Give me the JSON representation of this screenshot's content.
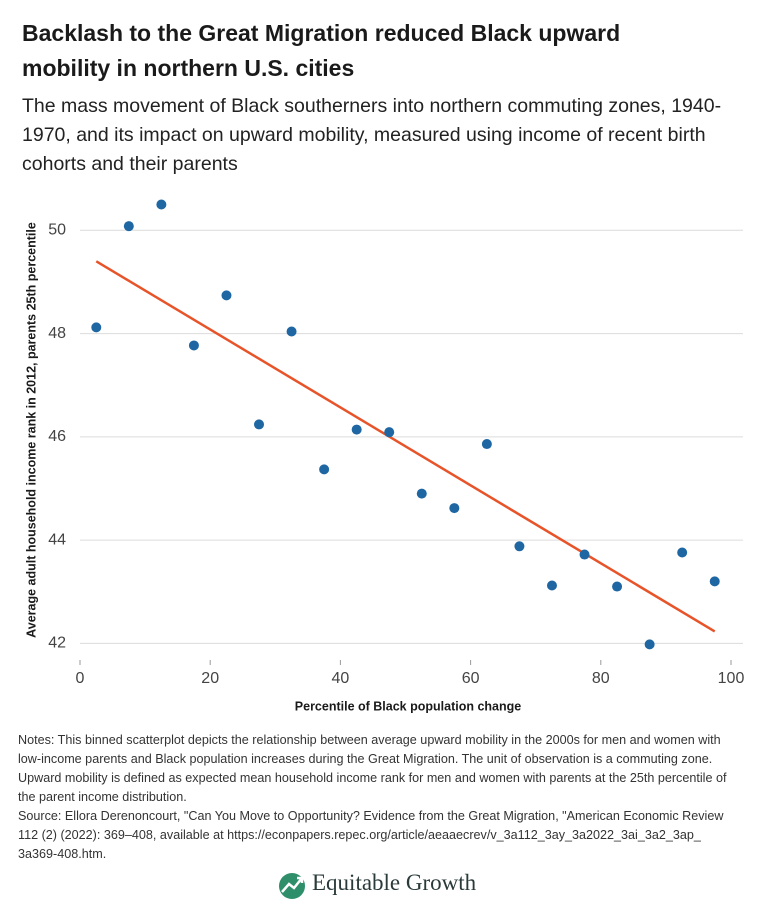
{
  "chart_data": {
    "type": "scatter",
    "title": "Backlash to the Great Migration reduced Black upward mobility in northern U.S. cities",
    "subtitle": "The mass movement of Black southerners into northern commuting zones, 1940-1970, and its impact on upward mobility, measured using income of recent birth cohorts and their parents",
    "x_label": "Percentile of Black population change",
    "y_label": "Average adult household income rank in 2012, parents 25th percentile",
    "notes": "Notes: This binned scatterplot depicts the relationship between average upward mobility in the 2000s for men and women with low-income parents and Black population increases during the Great Migration. The unit of observation is a commuting zone. Upward mobility is defined as expected mean household income rank for men and women  with parents at the 25th percentile of the parent income distribution.",
    "source": "Source: Ellora Derenoncourt, \"Can You Move to Opportunity? Evidence from the Great Migration, \"American Economic Review 112 (2) (2022): 369–408, available at https://econpapers.repec.org/article/aeaaecrev/v_3a112_3ay_3a2022_3ai_3a2_3ap_ 3a369-408.htm.",
    "brand": "Equitable Growth",
    "x": [
      2.5,
      7.5,
      12.5,
      17.5,
      22.5,
      27.5,
      32.5,
      37.5,
      42.5,
      47.5,
      52.5,
      57.5,
      62.5,
      67.5,
      72.5,
      77.5,
      82.5,
      87.5,
      92.5,
      97.5
    ],
    "values": [
      48.12,
      50.08,
      50.5,
      47.77,
      48.74,
      46.24,
      48.04,
      45.37,
      46.14,
      46.09,
      44.9,
      44.62,
      45.86,
      43.88,
      43.12,
      43.72,
      43.1,
      41.98,
      43.76,
      43.2
    ],
    "color": "#1f67a3",
    "fit": {
      "x": [
        2.5,
        97.5
      ],
      "values": [
        49.4,
        42.23
      ],
      "color": "#e8542a"
    },
    "xlim": [
      0,
      100
    ],
    "ylim": [
      41.6,
      50.8
    ],
    "xticks": [
      0,
      20,
      40,
      60,
      80,
      100
    ],
    "yticks": [
      42,
      44,
      46,
      48,
      50
    ],
    "grid": true
  }
}
